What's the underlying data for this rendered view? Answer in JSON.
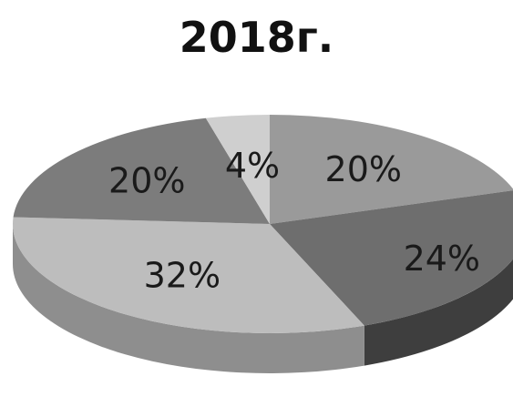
{
  "chart_data": {
    "type": "pie",
    "title": "2018г.",
    "legend": "none",
    "slices": [
      {
        "label": "20%",
        "value": 20,
        "color": "#9a9a9a",
        "side": "#6e6e6e"
      },
      {
        "label": "24%",
        "value": 24,
        "color": "#6e6e6e",
        "side": "#3e3e3e"
      },
      {
        "label": "32%",
        "value": 32,
        "color": "#bdbdbd",
        "side": "#8e8e8e"
      },
      {
        "label": "20%",
        "value": 20,
        "color": "#7c7c7c",
        "side": "#525252"
      },
      {
        "label": "4%",
        "value": 4,
        "color": "#cfcfcf",
        "side": "#a3a3a3"
      }
    ]
  }
}
